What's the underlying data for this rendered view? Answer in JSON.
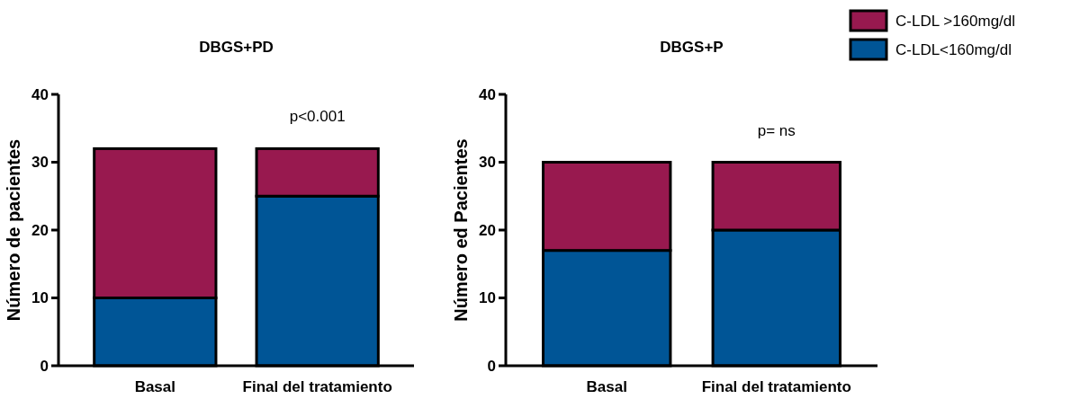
{
  "chart_data": [
    {
      "type": "bar",
      "title": "DBGS+PD",
      "ylabel": "Número de pacientes",
      "categories": [
        "Basal",
        "Final del tratamiento"
      ],
      "stacked": true,
      "ylim": [
        0,
        40
      ],
      "yticks": [
        0,
        10,
        20,
        30,
        40
      ],
      "annotations": [
        "p<0.001"
      ],
      "series": [
        {
          "color": "#005596",
          "values": [
            10,
            25
          ]
        },
        {
          "color": "#98194f",
          "values": [
            22,
            7
          ]
        }
      ]
    },
    {
      "type": "bar",
      "title": "DBGS+P",
      "ylabel": "Número ed Pacientes",
      "categories": [
        "Basal",
        "Final del tratamiento"
      ],
      "stacked": true,
      "ylim": [
        0,
        40
      ],
      "yticks": [
        0,
        10,
        20,
        30,
        40
      ],
      "legend": "top right",
      "annotations": [
        "p= ns"
      ],
      "series": [
        {
          "name": "C-LDL<160mg/dl",
          "color": "#005596",
          "values": [
            17,
            20
          ]
        },
        {
          "name": "C-LDL >160mg/dl",
          "color": "#98194f",
          "values": [
            13,
            10
          ]
        }
      ]
    }
  ]
}
